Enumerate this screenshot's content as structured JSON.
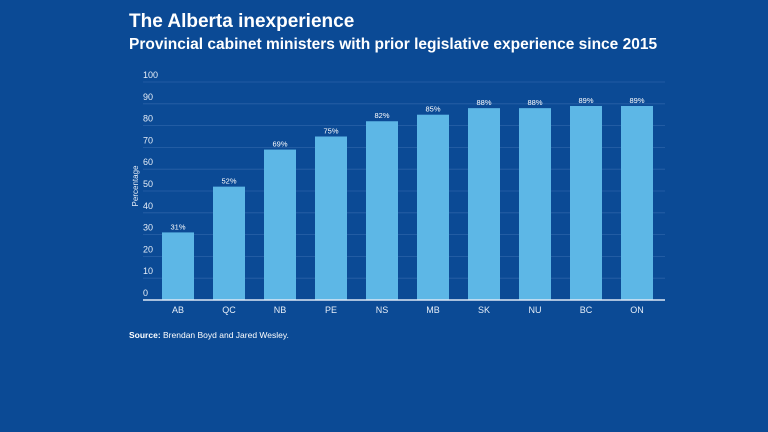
{
  "chart_data": {
    "type": "bar",
    "title": "The Alberta inexperience",
    "subtitle": "Provincial cabinet ministers with prior legislative experience since 2015",
    "categories": [
      "AB",
      "QC",
      "NB",
      "PE",
      "NS",
      "MB",
      "SK",
      "NU",
      "BC",
      "ON"
    ],
    "values": [
      31,
      52,
      69,
      75,
      82,
      85,
      88,
      88,
      89,
      89
    ],
    "data_labels": [
      "31%",
      "52%",
      "69%",
      "75%",
      "82%",
      "85%",
      "88%",
      "88%",
      "89%",
      "89%"
    ],
    "xlabel": "",
    "ylabel": "Percentage",
    "ylim": [
      0,
      100
    ],
    "yticks": [
      "0",
      "10",
      "20",
      "30",
      "40",
      "50",
      "60",
      "70",
      "80",
      "90",
      "100"
    ],
    "grid": true,
    "bar_color": "#5db7e6",
    "background_color": "#0b4a95"
  },
  "source": {
    "label": "Source:",
    "text": " Brendan Boyd and Jared Wesley."
  }
}
